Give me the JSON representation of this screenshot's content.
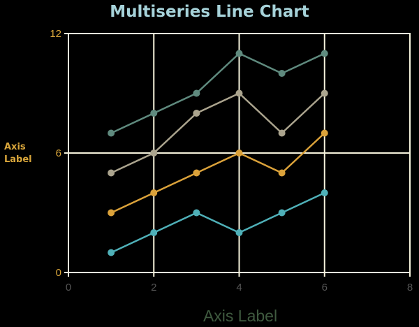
{
  "chart_data": {
    "type": "line",
    "title": "Multiseries Line Chart",
    "xlabel": "Axis Label",
    "ylabel_lines": [
      "Axis",
      "Label"
    ],
    "xlim": [
      0,
      8
    ],
    "ylim": [
      0,
      12
    ],
    "xticks": [
      0,
      2,
      4,
      6,
      8
    ],
    "yticks": [
      0,
      6,
      12
    ],
    "grid": true,
    "x": [
      1,
      2,
      3,
      4,
      5,
      6
    ],
    "series": [
      {
        "values": [
          7,
          8,
          9,
          11,
          10,
          11
        ],
        "color": "#5f8a7e"
      },
      {
        "values": [
          5,
          6,
          8,
          9,
          7,
          9
        ],
        "color": "#aba48e"
      },
      {
        "values": [
          3,
          4,
          5,
          6,
          5,
          7
        ],
        "color": "#dba23a"
      },
      {
        "values": [
          1,
          2,
          3,
          2,
          3,
          4
        ],
        "color": "#4fb0b8"
      }
    ]
  },
  "colors": {
    "background": "#000000",
    "title": "#a6d2d9",
    "axis_text": "#d9a63b",
    "xlabel": "#3f5a3f",
    "xtick": "#555555",
    "grid": "#f5f2dc"
  }
}
